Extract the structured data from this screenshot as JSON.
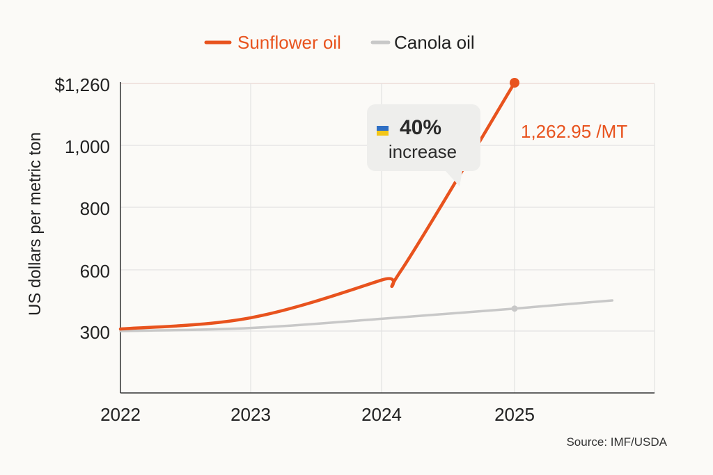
{
  "chart_data": {
    "type": "line",
    "x": [
      2022,
      2023,
      2024,
      2025
    ],
    "x_tick_labels": [
      "2022",
      "2023",
      "2024",
      "2025"
    ],
    "y_tick_labels": [
      "$1,260",
      "1,000",
      "800",
      "600",
      "300"
    ],
    "ylabel": "US dollars per metric ton",
    "series": [
      {
        "name": "Sunflower oil",
        "color": "#e8531e",
        "points": [
          [
            2022,
            310
          ],
          [
            2023,
            365
          ],
          [
            2024,
            550
          ],
          [
            2024.15,
            600
          ],
          [
            2025,
            1262.95
          ]
        ]
      },
      {
        "name": "Canola oil",
        "color": "#c8c8c8",
        "points": [
          [
            2022,
            300
          ],
          [
            2023,
            315
          ],
          [
            2024,
            360
          ],
          [
            2025,
            410
          ],
          [
            2025.75,
            450
          ]
        ]
      }
    ],
    "grid": true,
    "legend_position": "top-center",
    "callout": {
      "percent": "40%",
      "text": "increase",
      "icon": "ukraine-flag-icon"
    },
    "end_label": "1,262.95 /MT",
    "source": "Source: IMF/USDA"
  }
}
